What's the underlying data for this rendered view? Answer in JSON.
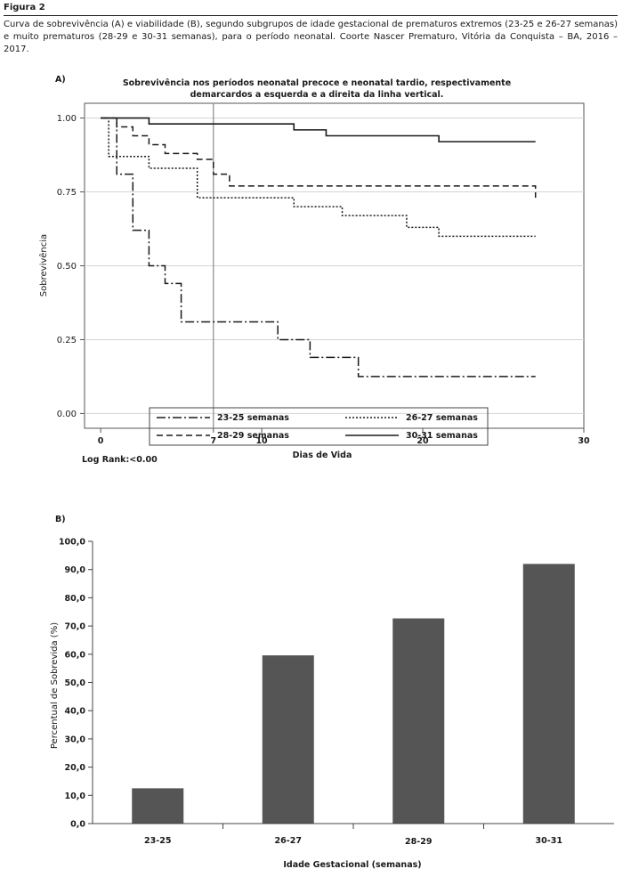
{
  "figure": {
    "label": "Figura 2",
    "caption": "Curva de sobrevivência (A) e viabilidade (B), segundo subgrupos de idade gestacional de prematuros extremos (23-25 e 26-27 semanas) e muito prematuros (28-29 e 30-31 semanas), para o período neonatal. Coorte Nascer Prematuro, Vitória da Conquista – BA, 2016 – 2017."
  },
  "chart_data": [
    {
      "type": "line",
      "panel_label": "A)",
      "title": "Sobrevivência nos períodos neonatal precoce e neonatal tardio, respectivamente demarcardos a esquerda e a direita da linha vertical.",
      "xlabel": "Dias de Vida",
      "ylabel": "Sobrevivência",
      "xlim": [
        -1,
        30
      ],
      "ylim": [
        -0.05,
        1.05
      ],
      "x_ticks": [
        0,
        7,
        10,
        20,
        30
      ],
      "y_ticks": [
        0.0,
        0.25,
        0.5,
        0.75,
        1.0
      ],
      "y_tick_labels": [
        "0.00",
        "0.25",
        "0.50",
        "0.75",
        "1.00"
      ],
      "vertical_line_x": 7,
      "grid": "horizontal",
      "legend_position": "bottom",
      "step": true,
      "series": [
        {
          "name": "23-25 semanas",
          "style": "dash-dot",
          "x": [
            0,
            1,
            2,
            3,
            4,
            5,
            11,
            13,
            16,
            27
          ],
          "y": [
            1.0,
            0.81,
            0.62,
            0.5,
            0.44,
            0.31,
            0.25,
            0.19,
            0.125,
            0.125
          ]
        },
        {
          "name": "28-29 semanas",
          "style": "dashed",
          "x": [
            0,
            1,
            2,
            3,
            4,
            6,
            7,
            8,
            27
          ],
          "y": [
            1.0,
            0.97,
            0.94,
            0.91,
            0.88,
            0.86,
            0.81,
            0.77,
            0.73
          ]
        },
        {
          "name": "26-27 semanas",
          "style": "dotted",
          "x": [
            0,
            0.5,
            3,
            6,
            12,
            15,
            19,
            21,
            27
          ],
          "y": [
            1.0,
            0.87,
            0.83,
            0.73,
            0.7,
            0.67,
            0.63,
            0.6,
            0.6
          ]
        },
        {
          "name": "30-31 semanas",
          "style": "solid",
          "x": [
            0,
            3,
            12,
            14,
            21,
            27
          ],
          "y": [
            1.0,
            0.98,
            0.96,
            0.94,
            0.92,
            0.92
          ]
        }
      ],
      "annotation": "Log Rank:<0.00"
    },
    {
      "type": "bar",
      "panel_label": "B)",
      "xlabel": "Idade Gestacional (semanas)",
      "ylabel": "Percentual de Sobrevida (%)",
      "ylim": [
        0,
        100
      ],
      "y_ticks": [
        0,
        10,
        20,
        30,
        40,
        50,
        60,
        70,
        80,
        90,
        100
      ],
      "y_tick_labels": [
        "0,0",
        "10,0",
        "20,0",
        "30,0",
        "40,0",
        "50,0",
        "60,0",
        "70,0",
        "80,0",
        "90,0",
        "100,0"
      ],
      "categories": [
        "23-25",
        "26-27",
        "28-29",
        "30-31"
      ],
      "values": [
        12.5,
        59.6,
        72.7,
        92.0
      ],
      "bar_color": "#555555"
    }
  ]
}
